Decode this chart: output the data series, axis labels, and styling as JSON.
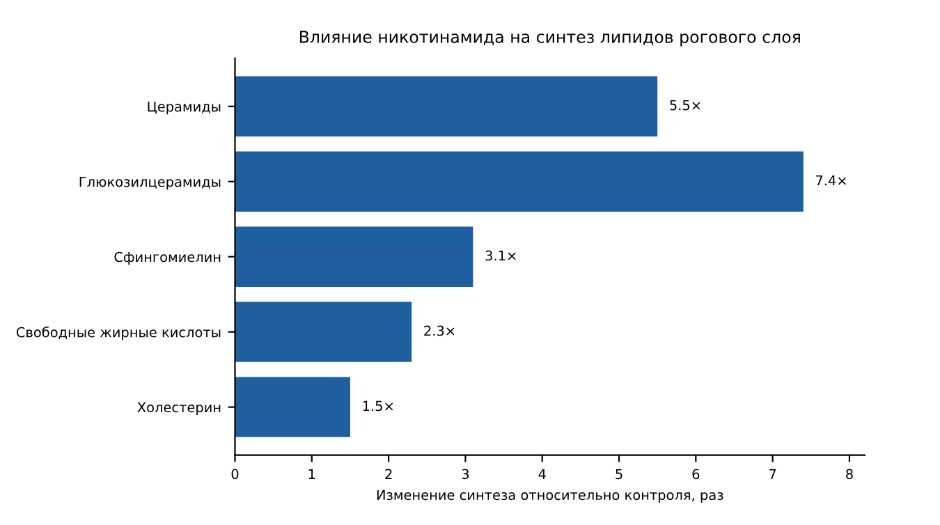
{
  "chart_data": {
    "type": "bar",
    "orientation": "horizontal",
    "title": "Влияние никотинамида на синтез липидов рогового слоя",
    "xlabel": "Изменение синтеза относительно контроля, раз",
    "categories": [
      "Церамиды",
      "Глюкозилцерамиды",
      "Сфингомиелин",
      "Свободные жирные кислоты",
      "Холестерин"
    ],
    "values": [
      5.5,
      7.4,
      3.1,
      2.3,
      1.5
    ],
    "value_labels": [
      "5.5×",
      "7.4×",
      "3.1×",
      "2.3×",
      "1.5×"
    ],
    "color": "#1f5fa0",
    "xlim": [
      0,
      8.2
    ],
    "xticks": [
      0,
      1,
      2,
      3,
      4,
      5,
      6,
      7,
      8
    ],
    "grid": false
  }
}
